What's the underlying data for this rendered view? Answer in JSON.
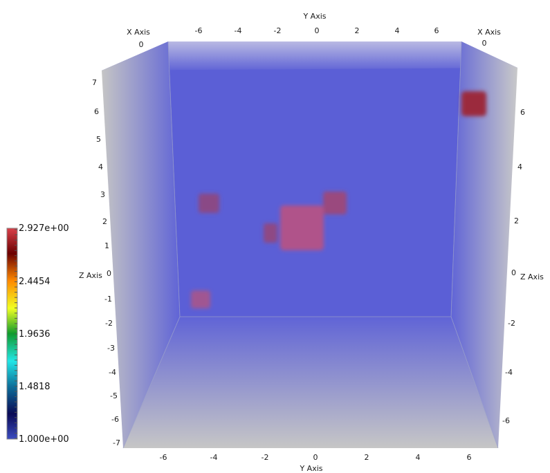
{
  "axes": {
    "top": {
      "title": "Y Axis",
      "ticks": [
        "-6",
        "-4",
        "-2",
        "0",
        "2",
        "4",
        "6"
      ]
    },
    "bottom": {
      "title": "Y Axis",
      "ticks": [
        "-6",
        "-4",
        "-2",
        "0",
        "2",
        "4",
        "6"
      ]
    },
    "top_left_x": {
      "title": "X Axis",
      "tick": "0"
    },
    "top_right_x": {
      "title": "X Axis",
      "tick": "0"
    },
    "left_z": {
      "title": "Z Axis",
      "ticks": [
        "7",
        "6",
        "5",
        "4",
        "3",
        "2",
        "1",
        "0",
        "-1",
        "-2",
        "-3",
        "-4",
        "-5",
        "-6",
        "-7"
      ]
    },
    "right_z": {
      "title": "Z Axis",
      "ticks": [
        "6",
        "4",
        "2",
        "0",
        "-2",
        "-4",
        "-6"
      ]
    }
  },
  "colorbar": {
    "labels": [
      "2.927e+00",
      "2.4454",
      "1.9636",
      "1.4818",
      "1.000e+00"
    ],
    "min_value": 1.0,
    "max_value": 2.927
  },
  "colors": {
    "volume": "#5b5fd8",
    "hot_block": "#9b2c4a",
    "warm_block": "#b8527c",
    "frame": "#c8c8c8"
  }
}
